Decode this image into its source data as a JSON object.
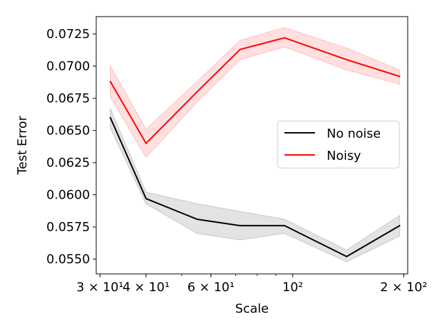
{
  "chart_data": {
    "type": "line",
    "xlabel": "Scale",
    "ylabel": "Test Error",
    "xscale": "log",
    "xlim": [
      29.3,
      205
    ],
    "ylim": [
      0.05385,
      0.07385
    ],
    "grid": false,
    "legend_placement": "center-right",
    "x": [
      32,
      40,
      55,
      72,
      95,
      140,
      195
    ],
    "x_ticks": [
      {
        "value": 30,
        "label": "3 × 10¹"
      },
      {
        "value": 40,
        "label": "4 × 10¹"
      },
      {
        "value": 60,
        "label": "6 × 10¹"
      },
      {
        "value": 100,
        "label": "10²"
      },
      {
        "value": 200,
        "label": "2 × 10²"
      }
    ],
    "y_ticks": [
      {
        "value": 0.055,
        "label": "0.0550"
      },
      {
        "value": 0.0575,
        "label": "0.0575"
      },
      {
        "value": 0.06,
        "label": "0.0600"
      },
      {
        "value": 0.0625,
        "label": "0.0625"
      },
      {
        "value": 0.065,
        "label": "0.0650"
      },
      {
        "value": 0.0675,
        "label": "0.0675"
      },
      {
        "value": 0.07,
        "label": "0.0700"
      },
      {
        "value": 0.0725,
        "label": "0.0725"
      }
    ],
    "series": [
      {
        "name": "No noise",
        "color": "#000000",
        "band_color": "#c8c8c8",
        "values": [
          0.066,
          0.0597,
          0.0581,
          0.0576,
          0.0576,
          0.0552,
          0.0576
        ],
        "lower": [
          0.0652,
          0.0593,
          0.057,
          0.0565,
          0.057,
          0.0548,
          0.0568
        ],
        "upper": [
          0.0667,
          0.0602,
          0.0593,
          0.0587,
          0.0581,
          0.0557,
          0.0584
        ]
      },
      {
        "name": "Noisy",
        "color": "#ff0000",
        "band_color": "#ffc0c0",
        "values": [
          0.0688,
          0.064,
          0.068,
          0.0713,
          0.0722,
          0.0705,
          0.0692
        ],
        "lower": [
          0.0676,
          0.0629,
          0.0672,
          0.0705,
          0.0715,
          0.0697,
          0.0686
        ],
        "upper": [
          0.07,
          0.0651,
          0.0688,
          0.072,
          0.073,
          0.0714,
          0.0697
        ]
      }
    ]
  }
}
